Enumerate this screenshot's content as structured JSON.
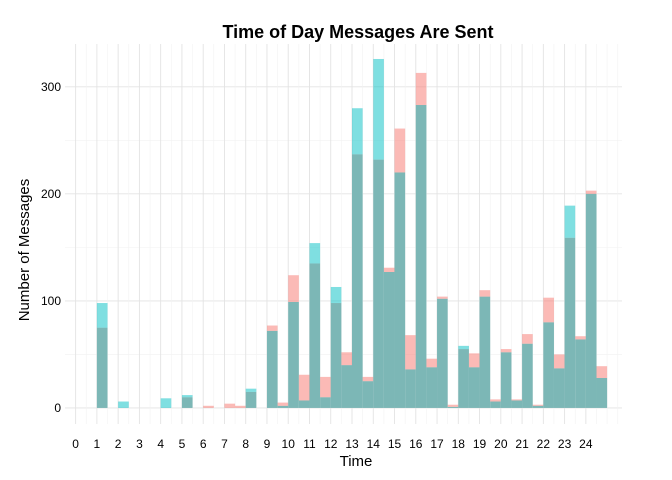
{
  "chart_data": {
    "type": "bar",
    "title": "Time of Day Messages Are Sent",
    "xlabel": "Time",
    "ylabel": "Number of Messages",
    "x_ticks": [
      "0",
      "1",
      "2",
      "3",
      "4",
      "5",
      "6",
      "7",
      "8",
      "9",
      "10",
      "11",
      "12",
      "13",
      "14",
      "15",
      "16",
      "17",
      "18",
      "19",
      "20",
      "21",
      "22",
      "23",
      "24"
    ],
    "y_ticks": [
      0,
      100,
      200,
      300
    ],
    "ylim": [
      -15,
      340
    ],
    "bin_width": 0.5,
    "bin_starts": [
      1.0,
      1.5,
      2.0,
      2.5,
      3.0,
      3.5,
      4.0,
      4.5,
      5.0,
      5.5,
      6.0,
      6.5,
      7.0,
      7.5,
      8.0,
      8.5,
      9.0,
      9.5,
      10.0,
      10.5,
      11.0,
      11.5,
      12.0,
      12.5,
      13.0,
      13.5,
      14.0,
      14.5,
      15.0,
      15.5,
      16.0,
      16.5,
      17.0,
      17.5,
      18.0,
      18.5,
      19.0,
      19.5,
      20.0,
      20.5,
      21.0,
      21.5,
      22.0,
      22.5,
      23.0,
      23.5,
      24.0,
      24.5
    ],
    "series": [
      {
        "color": "#F8766D",
        "values": [
          75,
          0,
          0,
          0,
          0,
          0,
          0,
          0,
          10,
          0,
          2,
          0,
          4,
          2,
          15,
          0,
          77,
          5,
          124,
          31,
          135,
          29,
          98,
          52,
          237,
          29,
          232,
          131,
          261,
          68,
          313,
          46,
          104,
          3,
          55,
          51,
          110,
          8,
          55,
          8,
          69,
          3,
          103,
          50,
          159,
          67,
          203,
          39
        ]
      },
      {
        "color": "#00BFC4",
        "values": [
          98,
          0,
          6,
          0,
          0,
          0,
          9,
          0,
          12,
          0,
          0,
          0,
          0,
          0,
          18,
          0,
          72,
          2,
          99,
          7,
          154,
          10,
          113,
          40,
          280,
          25,
          326,
          127,
          220,
          36,
          283,
          38,
          102,
          1,
          58,
          38,
          104,
          6,
          52,
          7,
          60,
          2,
          80,
          37,
          189,
          64,
          200,
          28
        ]
      }
    ],
    "overlap_color": "#7CB7B6",
    "grid": true
  }
}
